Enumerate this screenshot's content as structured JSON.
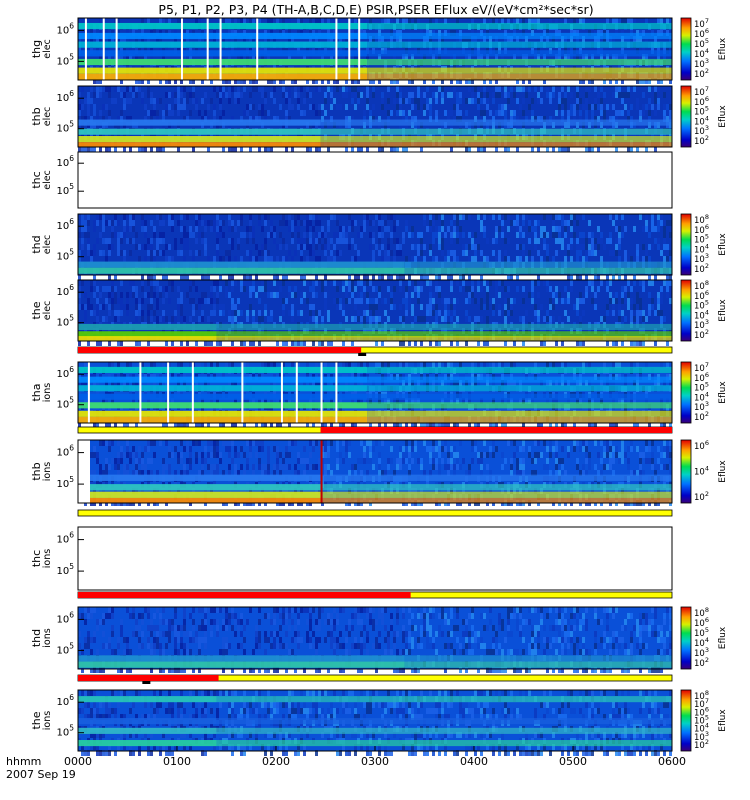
{
  "title": "P5, P1, P2, P3, P4 (TH-A,B,C,D,E) PSIR,PSER EFlux eV/(eV*cm²*sec*sr)",
  "colors": {
    "flag_red": "#ff0000",
    "flag_yellow": "#ffff00",
    "frame": "#000000"
  },
  "chart_data": {
    "type": "heatmap",
    "title": "P5, P1, P2, P3, P4 (TH-A,B,C,D,E) PSIR,PSER EFlux eV/(eV*cm²*sec*sr)",
    "x_axis": {
      "label_line1": "hhmm",
      "label_line2": "2007 Sep 19",
      "ticks": [
        "0000",
        "0100",
        "0200",
        "0300",
        "0400",
        "0500",
        "0600"
      ],
      "range_hours": [
        0,
        6
      ]
    },
    "panels": [
      {
        "probe": "thg",
        "species": "elec",
        "ylabel1": "thg",
        "ylabel2": "elec",
        "yticks": [
          {
            "base": "10",
            "exp": "6"
          },
          {
            "base": "10",
            "exp": "5"
          }
        ],
        "colorbar": {
          "label": "Eflux",
          "ticks": [
            "7",
            "6",
            "5",
            "4",
            "3",
            "2"
          ]
        },
        "has_data": true,
        "split_hour": 2.92
      },
      {
        "probe": "thb",
        "species": "elec",
        "ylabel1": "thb",
        "ylabel2": "elec",
        "yticks": [
          {
            "base": "10",
            "exp": "6"
          },
          {
            "base": "10",
            "exp": "5"
          }
        ],
        "colorbar": {
          "label": "Eflux",
          "ticks": [
            "7",
            "6",
            "5",
            "4",
            "3",
            "2"
          ]
        },
        "has_data": true,
        "split_hour": 2.45
      },
      {
        "probe": "thc",
        "species": "elec",
        "ylabel1": "thc",
        "ylabel2": "elec",
        "yticks": [
          {
            "base": "10",
            "exp": "6"
          },
          {
            "base": "10",
            "exp": "5"
          }
        ],
        "colorbar": null,
        "has_data": false
      },
      {
        "probe": "thd",
        "species": "elec",
        "ylabel1": "thd",
        "ylabel2": "elec",
        "yticks": [
          {
            "base": "10",
            "exp": "6"
          },
          {
            "base": "10",
            "exp": "5"
          }
        ],
        "colorbar": {
          "label": "Eflux",
          "ticks": [
            "8",
            "6",
            "5",
            "4",
            "3",
            "2"
          ]
        },
        "has_data": true,
        "split_hour": 3.3
      },
      {
        "probe": "the",
        "species": "elec",
        "ylabel1": "the",
        "ylabel2": "elec",
        "yticks": [
          {
            "base": "10",
            "exp": "6"
          },
          {
            "base": "10",
            "exp": "5"
          }
        ],
        "colorbar": {
          "label": "Eflux",
          "ticks": [
            "8",
            "6",
            "5",
            "4",
            "3",
            "2"
          ]
        },
        "has_data": true,
        "split_hour": 1.4
      },
      {
        "probe": "tha",
        "species": "ions",
        "ylabel1": "tha",
        "ylabel2": "ions",
        "yticks": [
          {
            "base": "10",
            "exp": "6"
          },
          {
            "base": "10",
            "exp": "5"
          }
        ],
        "colorbar": {
          "label": "Eflux",
          "ticks": [
            "7",
            "6",
            "5",
            "4",
            "3",
            "2"
          ]
        },
        "has_data": true,
        "split_hour": 2.92
      },
      {
        "probe": "thb",
        "species": "ions",
        "ylabel1": "thb",
        "ylabel2": "ions",
        "yticks": [
          {
            "base": "10",
            "exp": "6"
          },
          {
            "base": "10",
            "exp": "5"
          }
        ],
        "colorbar": {
          "label": "Eflux",
          "ticks": [
            "6",
            "4",
            "2"
          ]
        },
        "has_data": true,
        "split_hour": 2.45
      },
      {
        "probe": "thc",
        "species": "ions",
        "ylabel1": "thc",
        "ylabel2": "ions",
        "yticks": [
          {
            "base": "10",
            "exp": "6"
          },
          {
            "base": "10",
            "exp": "5"
          }
        ],
        "colorbar": null,
        "has_data": false
      },
      {
        "probe": "thd",
        "species": "ions",
        "ylabel1": "thd",
        "ylabel2": "ions",
        "yticks": [
          {
            "base": "10",
            "exp": "6"
          },
          {
            "base": "10",
            "exp": "5"
          }
        ],
        "colorbar": {
          "label": "Eflux",
          "ticks": [
            "8",
            "6",
            "5",
            "4",
            "3",
            "2"
          ]
        },
        "has_data": true,
        "split_hour": 3.3
      },
      {
        "probe": "the",
        "species": "ions",
        "ylabel1": "the",
        "ylabel2": "ions",
        "yticks": [
          {
            "base": "10",
            "exp": "6"
          },
          {
            "base": "10",
            "exp": "5"
          }
        ],
        "colorbar": {
          "label": "Eflux",
          "ticks": [
            "8",
            "7",
            "6",
            "5",
            "4",
            "3",
            "2"
          ]
        },
        "has_data": true,
        "split_hour": 1.4
      }
    ],
    "mode_bars": [
      {
        "red_until_hour": 0,
        "black_marks_hour": []
      },
      {
        "red_until_hour": 0,
        "black_marks_hour": []
      },
      {
        "red_until_hour": 0,
        "black_marks_hour": []
      },
      {
        "red_until_hour": 0,
        "black_marks_hour": []
      },
      {
        "red_until_hour": 2.86,
        "black_marks_hour": [
          2.83
        ]
      },
      {
        "red_from_hour": 2.45,
        "black_marks_hour": []
      },
      {
        "red_until_hour": 0,
        "black_marks_hour": []
      },
      {
        "red_until_hour": 3.36,
        "black_marks_hour": []
      },
      {
        "red_until_hour": 1.42,
        "black_marks_hour": [
          0.65
        ]
      }
    ]
  }
}
